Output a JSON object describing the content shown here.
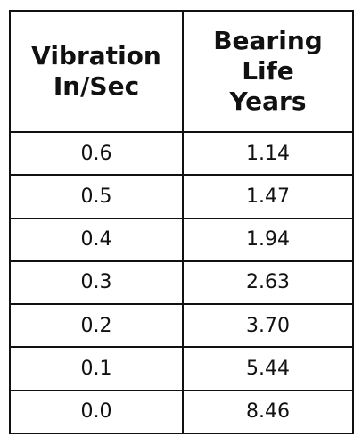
{
  "table": {
    "headers": [
      [
        "Vibration",
        "In/Sec"
      ],
      [
        "Bearing",
        "Life",
        "Years"
      ]
    ],
    "rows": [
      [
        "0.6",
        "1.14"
      ],
      [
        "0.5",
        "1.47"
      ],
      [
        "0.4",
        "1.94"
      ],
      [
        "0.3",
        "2.63"
      ],
      [
        "0.2",
        "3.70"
      ],
      [
        "0.1",
        "5.44"
      ],
      [
        "0.0",
        "8.46"
      ]
    ]
  }
}
